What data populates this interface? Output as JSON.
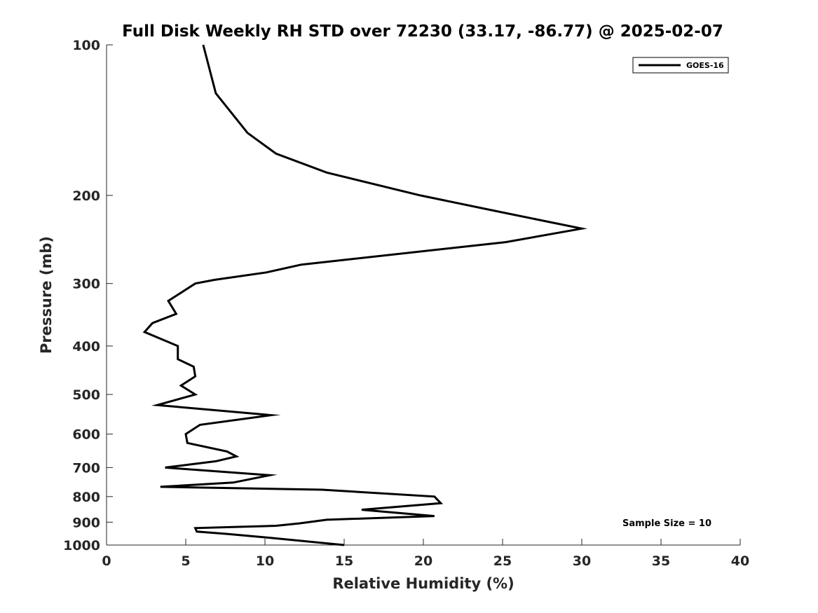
{
  "chart_data": {
    "type": "line",
    "title": "Full Disk Weekly RH STD over 72230 (33.17, -86.77) @ 2025-02-07",
    "xlabel": "Relative Humidity (%)",
    "ylabel": "Pressure (mb)",
    "xlim": [
      0,
      40
    ],
    "ylim": [
      1000,
      100
    ],
    "yscale": "log",
    "reverse_y": true,
    "xticks": [
      0,
      5,
      10,
      15,
      20,
      25,
      30,
      35,
      40
    ],
    "yticks": [
      100,
      200,
      300,
      400,
      500,
      600,
      700,
      800,
      900,
      1000
    ],
    "legend_position": "top-right",
    "series": [
      {
        "name": "GOES-16",
        "color": "#000000",
        "points": [
          [
            6.1,
            100
          ],
          [
            6.9,
            125
          ],
          [
            8.9,
            150
          ],
          [
            10.7,
            165
          ],
          [
            13.9,
            180
          ],
          [
            19.8,
            200
          ],
          [
            24.6,
            215
          ],
          [
            30.0,
            233
          ],
          [
            25.2,
            248
          ],
          [
            12.3,
            275
          ],
          [
            10.1,
            285
          ],
          [
            6.8,
            295
          ],
          [
            5.6,
            300
          ],
          [
            3.9,
            325
          ],
          [
            4.4,
            345
          ],
          [
            2.9,
            360
          ],
          [
            2.4,
            375
          ],
          [
            4.5,
            400
          ],
          [
            4.5,
            425
          ],
          [
            5.5,
            440
          ],
          [
            5.6,
            460
          ],
          [
            4.7,
            480
          ],
          [
            5.6,
            500
          ],
          [
            3.2,
            525
          ],
          [
            10.4,
            550
          ],
          [
            5.9,
            575
          ],
          [
            5.0,
            600
          ],
          [
            5.1,
            625
          ],
          [
            7.6,
            650
          ],
          [
            8.2,
            665
          ],
          [
            6.9,
            680
          ],
          [
            3.7,
            700
          ],
          [
            10.3,
            725
          ],
          [
            8.0,
            750
          ],
          [
            3.4,
            765
          ],
          [
            13.6,
            775
          ],
          [
            20.7,
            800
          ],
          [
            21.1,
            825
          ],
          [
            16.1,
            850
          ],
          [
            20.7,
            875
          ],
          [
            13.9,
            890
          ],
          [
            12.2,
            905
          ],
          [
            10.7,
            915
          ],
          [
            5.6,
            925
          ],
          [
            5.7,
            940
          ],
          [
            7.6,
            950
          ],
          [
            10.0,
            965
          ],
          [
            15.0,
            1000
          ]
        ]
      }
    ],
    "annotations": [
      "Sample Size = 10"
    ]
  }
}
